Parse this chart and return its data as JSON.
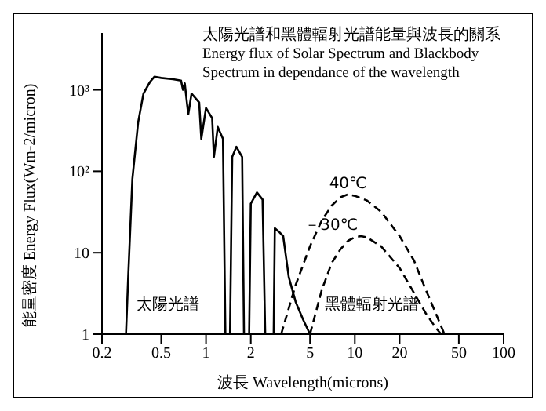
{
  "chart_data": {
    "type": "line",
    "title": "太陽光譜和黑體輻射光譜能量與波長的關系",
    "subtitle": "Energy flux of Solar Spectrum and Blackbody Spectrum in dependance of the wavelength",
    "xlabel": "波長  Wavelength(microns)",
    "ylabel": "能量密度 Energy Flux(Wm-2/micron)",
    "log": "xy",
    "xlim": [
      0.2,
      100
    ],
    "xticks": [
      {
        "value": 0.2,
        "label": "0.2"
      },
      {
        "value": 0.5,
        "label": "0.5"
      },
      1,
      2,
      5,
      10,
      20,
      50,
      100
    ],
    "ylim": [
      1,
      5000
    ],
    "yticks": [
      1,
      10,
      {
        "value": 100,
        "label": "10²"
      },
      {
        "value": 1000,
        "label": "10³"
      }
    ],
    "marker": "none",
    "series": [
      {
        "color": "#000000",
        "line_style": "solid",
        "x": [
          0.29,
          0.3,
          0.32,
          0.35,
          0.38,
          0.42,
          0.45,
          0.5,
          0.6,
          0.68,
          0.7,
          0.72,
          0.76,
          0.8,
          0.9,
          0.93,
          1.0,
          1.1,
          1.13,
          1.2,
          1.3,
          1.35,
          1.45,
          1.5,
          1.6,
          1.75,
          1.8,
          1.95,
          2.0,
          2.2,
          2.4,
          2.5,
          2.85,
          2.9,
          3.1,
          3.3,
          3.6,
          4.0,
          4.5,
          5.0
        ],
        "values": [
          1,
          5,
          80,
          400,
          900,
          1250,
          1450,
          1400,
          1350,
          1300,
          1000,
          1200,
          500,
          900,
          700,
          250,
          600,
          450,
          150,
          350,
          250,
          1,
          1,
          150,
          200,
          150,
          1,
          1,
          40,
          55,
          45,
          1,
          1,
          20,
          18,
          16,
          5,
          2.5,
          1.5,
          1
        ]
      },
      {
        "name": "40℃",
        "color": "#000000",
        "line_style": "dashed",
        "x": [
          3.2,
          4,
          5,
          6,
          7,
          8,
          9,
          10,
          12,
          15,
          20,
          25,
          30,
          35,
          40
        ],
        "values": [
          1,
          4,
          12,
          25,
          38,
          48,
          52,
          50,
          44,
          32,
          16,
          8,
          3.5,
          1.8,
          1
        ]
      },
      {
        "name": "－30℃",
        "color": "#000000",
        "line_style": "dashed",
        "x": [
          5,
          6,
          7,
          8,
          9,
          10,
          11,
          12,
          15,
          20,
          25,
          30,
          35,
          38
        ],
        "values": [
          1,
          3.5,
          7.5,
          11,
          14,
          15.5,
          16,
          15.5,
          12,
          6.5,
          3.2,
          1.8,
          1.2,
          1
        ]
      }
    ],
    "annotations": [
      "太陽光譜",
      "黑體輻射光譜"
    ]
  }
}
